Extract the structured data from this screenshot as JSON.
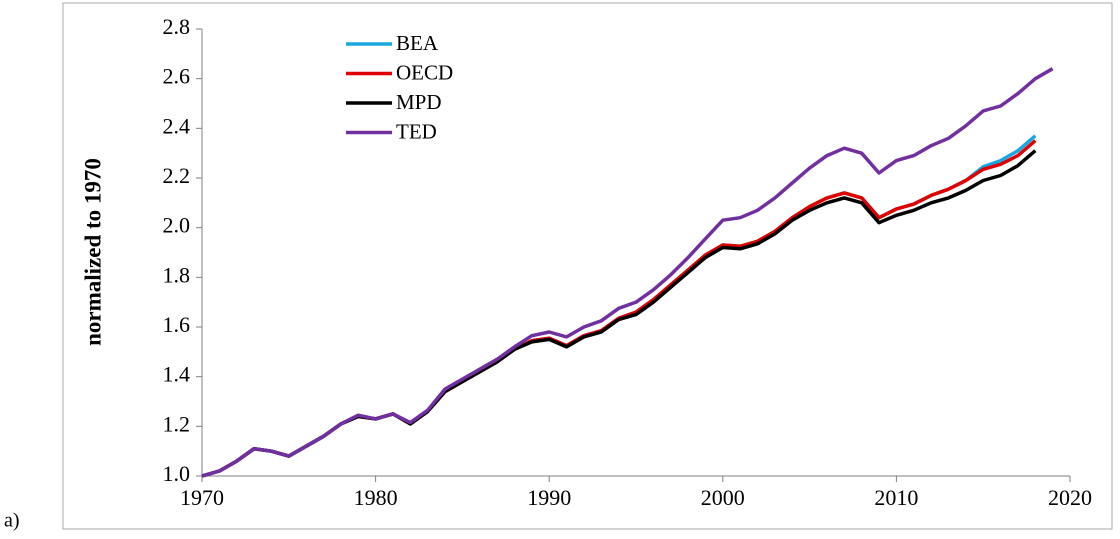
{
  "panel_label": "a)",
  "chart_data": {
    "type": "line",
    "ylabel": "normalized to 1970",
    "x": [
      1970,
      1971,
      1972,
      1973,
      1974,
      1975,
      1976,
      1977,
      1978,
      1979,
      1980,
      1981,
      1982,
      1983,
      1984,
      1985,
      1986,
      1987,
      1988,
      1989,
      1990,
      1991,
      1992,
      1993,
      1994,
      1995,
      1996,
      1997,
      1998,
      1999,
      2000,
      2001,
      2002,
      2003,
      2004,
      2005,
      2006,
      2007,
      2008,
      2009,
      2010,
      2011,
      2012,
      2013,
      2014,
      2015,
      2016,
      2017,
      2018,
      2019
    ],
    "series": [
      {
        "name": "BEA",
        "color": "#1aa7e0",
        "values": [
          1.0,
          1.02,
          1.06,
          1.11,
          1.1,
          1.08,
          1.12,
          1.16,
          1.21,
          1.24,
          1.23,
          1.25,
          1.21,
          1.26,
          1.34,
          1.38,
          1.42,
          1.46,
          1.51,
          1.545,
          1.555,
          1.525,
          1.565,
          1.585,
          1.635,
          1.66,
          1.71,
          1.77,
          1.83,
          1.89,
          1.93,
          1.925,
          1.945,
          1.985,
          2.04,
          2.085,
          2.12,
          2.14,
          2.12,
          2.04,
          2.075,
          2.095,
          2.13,
          2.155,
          2.19,
          2.245,
          2.27,
          2.31,
          2.37,
          null
        ]
      },
      {
        "name": "OECD",
        "color": "#e00000",
        "values": [
          1.0,
          1.02,
          1.06,
          1.11,
          1.1,
          1.08,
          1.12,
          1.16,
          1.21,
          1.24,
          1.23,
          1.25,
          1.21,
          1.26,
          1.34,
          1.38,
          1.42,
          1.46,
          1.51,
          1.545,
          1.555,
          1.525,
          1.565,
          1.585,
          1.635,
          1.66,
          1.71,
          1.77,
          1.83,
          1.89,
          1.93,
          1.925,
          1.945,
          1.985,
          2.04,
          2.085,
          2.12,
          2.14,
          2.12,
          2.04,
          2.075,
          2.095,
          2.13,
          2.155,
          2.19,
          2.235,
          2.255,
          2.29,
          2.35,
          null
        ]
      },
      {
        "name": "MPD",
        "color": "#000000",
        "values": [
          1.0,
          1.02,
          1.06,
          1.11,
          1.1,
          1.08,
          1.12,
          1.16,
          1.21,
          1.24,
          1.23,
          1.25,
          1.21,
          1.26,
          1.34,
          1.38,
          1.42,
          1.46,
          1.51,
          1.54,
          1.55,
          1.52,
          1.56,
          1.58,
          1.63,
          1.65,
          1.7,
          1.76,
          1.82,
          1.88,
          1.92,
          1.915,
          1.935,
          1.975,
          2.03,
          2.07,
          2.1,
          2.12,
          2.1,
          2.02,
          2.05,
          2.07,
          2.1,
          2.12,
          2.15,
          2.19,
          2.21,
          2.25,
          2.31,
          null
        ]
      },
      {
        "name": "TED",
        "color": "#7030a0",
        "values": [
          1.0,
          1.02,
          1.06,
          1.11,
          1.1,
          1.08,
          1.12,
          1.16,
          1.21,
          1.245,
          1.23,
          1.25,
          1.215,
          1.265,
          1.35,
          1.39,
          1.43,
          1.47,
          1.52,
          1.565,
          1.58,
          1.56,
          1.6,
          1.625,
          1.675,
          1.7,
          1.75,
          1.81,
          1.88,
          1.955,
          2.03,
          2.04,
          2.07,
          2.12,
          2.18,
          2.24,
          2.29,
          2.32,
          2.3,
          2.22,
          2.27,
          2.29,
          2.33,
          2.36,
          2.41,
          2.47,
          2.49,
          2.54,
          2.6,
          2.64
        ]
      }
    ],
    "xlim": [
      1970,
      2020
    ],
    "xticks": [
      1970,
      1980,
      1990,
      2000,
      2010,
      2020
    ],
    "ylim": [
      1.0,
      2.8
    ],
    "yticks": [
      {
        "value": 1.0,
        "label": "1.0"
      },
      {
        "value": 1.2,
        "label": "1.2"
      },
      {
        "value": 1.4,
        "label": "1.4"
      },
      {
        "value": 1.6,
        "label": "1.6"
      },
      {
        "value": 1.8,
        "label": "1.8"
      },
      {
        "value": 2.0,
        "label": "2.0"
      },
      {
        "value": 2.2,
        "label": "2.2"
      },
      {
        "value": 2.4,
        "label": "2.4"
      },
      {
        "value": 2.6,
        "label": "2.6"
      },
      {
        "value": 2.8,
        "label": "2.8"
      }
    ]
  }
}
